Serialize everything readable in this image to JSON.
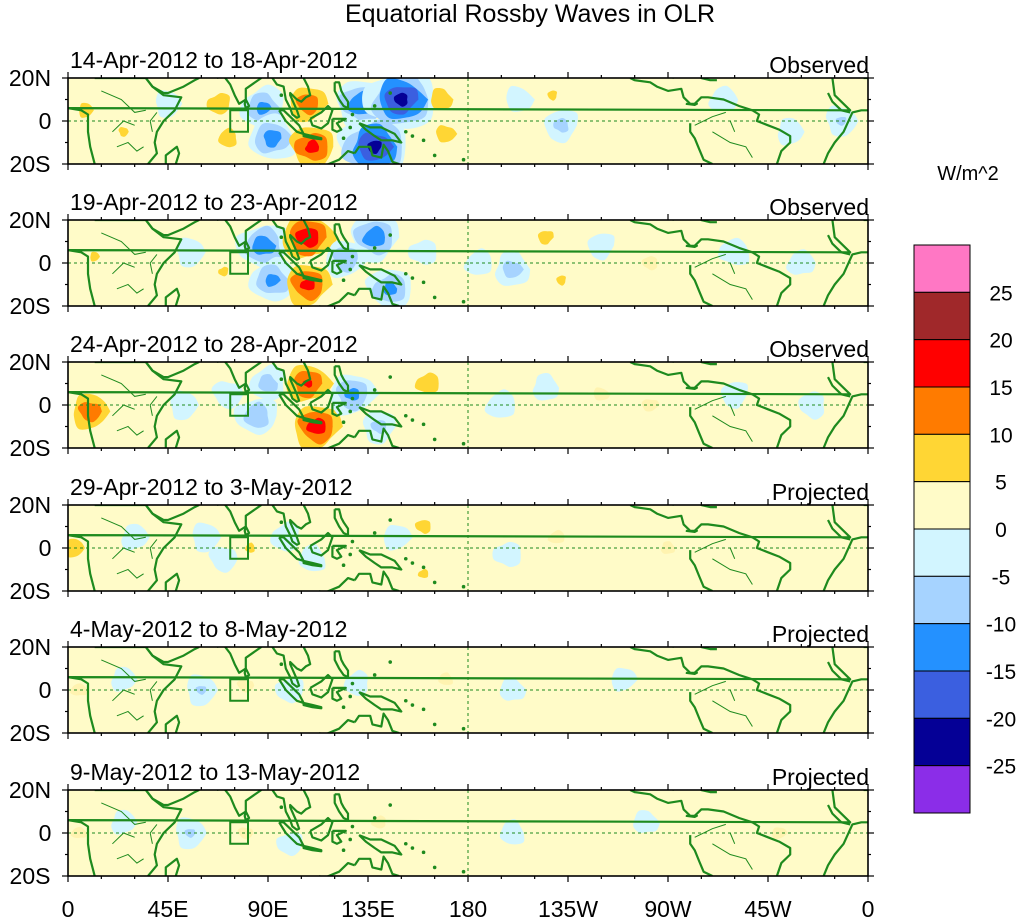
{
  "chart_data": {
    "type": "heatmap",
    "title": "Equatorial Rossby Waves in OLR",
    "units_label": "W/m^2",
    "x_ticks": [
      "0",
      "45E",
      "90E",
      "135E",
      "180",
      "135W",
      "90W",
      "45W",
      "0"
    ],
    "y_ticks": [
      "20N",
      "0",
      "20S"
    ],
    "colorbar": {
      "labels": [
        "25",
        "20",
        "15",
        "10",
        "5",
        "0",
        "-5",
        "-10",
        "-15",
        "-20",
        "-25"
      ],
      "colors": [
        "#ff77c4",
        "#a0282a",
        "#ff0000",
        "#ff7b00",
        "#ffd634",
        "#fffbc8",
        "#d2f5ff",
        "#a6d3ff",
        "#2491ff",
        "#3b5fe0",
        "#050096",
        "#8b2de8"
      ]
    },
    "panels": [
      {
        "date_range": "14-Apr-2012 to 18-Apr-2012",
        "status": "Observed"
      },
      {
        "date_range": "19-Apr-2012 to 23-Apr-2012",
        "status": "Observed"
      },
      {
        "date_range": "24-Apr-2012 to 28-Apr-2012",
        "status": "Observed"
      },
      {
        "date_range": "29-Apr-2012 to 3-May-2012",
        "status": "Projected"
      },
      {
        "date_range": "4-May-2012 to 8-May-2012",
        "status": "Projected"
      },
      {
        "date_range": "9-May-2012 to 13-May-2012",
        "status": "Projected"
      }
    ],
    "anomalies": [
      [
        {
          "lon": 8,
          "lat": 5,
          "v": 7
        },
        {
          "lon": 25,
          "lat": -5,
          "v": 6
        },
        {
          "lon": 45,
          "lat": 8,
          "v": -4
        },
        {
          "lon": 68,
          "lat": 8,
          "v": 9
        },
        {
          "lon": 72,
          "lat": -8,
          "v": 8
        },
        {
          "lon": 88,
          "lat": 6,
          "v": -12
        },
        {
          "lon": 92,
          "lat": -8,
          "v": -13
        },
        {
          "lon": 108,
          "lat": 8,
          "v": 14
        },
        {
          "lon": 110,
          "lat": -12,
          "v": 17
        },
        {
          "lon": 132,
          "lat": 8,
          "v": -15
        },
        {
          "lon": 138,
          "lat": -12,
          "v": -22
        },
        {
          "lon": 150,
          "lat": 10,
          "v": -22
        },
        {
          "lon": 168,
          "lat": 10,
          "v": 9
        },
        {
          "lon": 170,
          "lat": -6,
          "v": 8
        },
        {
          "lon": 203,
          "lat": 10,
          "v": -4
        },
        {
          "lon": 218,
          "lat": 12,
          "v": 6
        },
        {
          "lon": 222,
          "lat": -2,
          "v": -7
        },
        {
          "lon": 228,
          "lat": -10,
          "v": 5
        },
        {
          "lon": 275,
          "lat": 5,
          "v": 5
        },
        {
          "lon": 295,
          "lat": 10,
          "v": -4
        },
        {
          "lon": 325,
          "lat": -5,
          "v": -4
        },
        {
          "lon": 348,
          "lat": 0,
          "v": -6
        }
      ],
      [
        {
          "lon": 12,
          "lat": 3,
          "v": 6
        },
        {
          "lon": 30,
          "lat": -5,
          "v": 5
        },
        {
          "lon": 55,
          "lat": 5,
          "v": -5
        },
        {
          "lon": 70,
          "lat": -4,
          "v": 6
        },
        {
          "lon": 88,
          "lat": 8,
          "v": -14
        },
        {
          "lon": 92,
          "lat": -8,
          "v": -12
        },
        {
          "lon": 108,
          "lat": 12,
          "v": 19
        },
        {
          "lon": 108,
          "lat": -10,
          "v": 17
        },
        {
          "lon": 125,
          "lat": 2,
          "v": -10
        },
        {
          "lon": 138,
          "lat": 12,
          "v": -14
        },
        {
          "lon": 145,
          "lat": -12,
          "v": -12
        },
        {
          "lon": 160,
          "lat": 5,
          "v": -4
        },
        {
          "lon": 185,
          "lat": 0,
          "v": -4
        },
        {
          "lon": 200,
          "lat": -3,
          "v": -8
        },
        {
          "lon": 215,
          "lat": 12,
          "v": 7
        },
        {
          "lon": 222,
          "lat": -8,
          "v": 6
        },
        {
          "lon": 240,
          "lat": 8,
          "v": -4
        },
        {
          "lon": 262,
          "lat": 0,
          "v": 4
        },
        {
          "lon": 300,
          "lat": 5,
          "v": -5
        },
        {
          "lon": 330,
          "lat": 0,
          "v": -4
        }
      ],
      [
        {
          "lon": 10,
          "lat": -3,
          "v": 14
        },
        {
          "lon": 25,
          "lat": 8,
          "v": 5
        },
        {
          "lon": 52,
          "lat": 0,
          "v": -5
        },
        {
          "lon": 72,
          "lat": 5,
          "v": -5
        },
        {
          "lon": 85,
          "lat": -5,
          "v": -10
        },
        {
          "lon": 90,
          "lat": 10,
          "v": -8
        },
        {
          "lon": 108,
          "lat": 10,
          "v": 16
        },
        {
          "lon": 112,
          "lat": -10,
          "v": 18
        },
        {
          "lon": 128,
          "lat": 5,
          "v": -12
        },
        {
          "lon": 140,
          "lat": -10,
          "v": -7
        },
        {
          "lon": 162,
          "lat": 10,
          "v": 9
        },
        {
          "lon": 168,
          "lat": -5,
          "v": 5
        },
        {
          "lon": 195,
          "lat": 0,
          "v": -5
        },
        {
          "lon": 215,
          "lat": 8,
          "v": -4
        },
        {
          "lon": 240,
          "lat": 5,
          "v": 4
        },
        {
          "lon": 262,
          "lat": 0,
          "v": 4
        },
        {
          "lon": 300,
          "lat": 5,
          "v": -4
        },
        {
          "lon": 335,
          "lat": 0,
          "v": -4
        }
      ],
      [
        {
          "lon": 3,
          "lat": 0,
          "v": 8
        },
        {
          "lon": 30,
          "lat": 5,
          "v": -4
        },
        {
          "lon": 62,
          "lat": 5,
          "v": -5
        },
        {
          "lon": 70,
          "lat": -5,
          "v": -4
        },
        {
          "lon": 82,
          "lat": 0,
          "v": 6
        },
        {
          "lon": 98,
          "lat": 5,
          "v": -5
        },
        {
          "lon": 110,
          "lat": -5,
          "v": -4
        },
        {
          "lon": 130,
          "lat": -3,
          "v": 5
        },
        {
          "lon": 148,
          "lat": 5,
          "v": -4
        },
        {
          "lon": 160,
          "lat": 10,
          "v": 7
        },
        {
          "lon": 160,
          "lat": -12,
          "v": 6
        },
        {
          "lon": 198,
          "lat": -3,
          "v": -4
        },
        {
          "lon": 220,
          "lat": 5,
          "v": 4
        },
        {
          "lon": 270,
          "lat": 0,
          "v": 3
        },
        {
          "lon": 352,
          "lat": 0,
          "v": 5
        }
      ],
      [
        {
          "lon": 5,
          "lat": 0,
          "v": 4
        },
        {
          "lon": 25,
          "lat": 5,
          "v": -3
        },
        {
          "lon": 60,
          "lat": 0,
          "v": -6
        },
        {
          "lon": 80,
          "lat": 2,
          "v": 4
        },
        {
          "lon": 100,
          "lat": 0,
          "v": -4
        },
        {
          "lon": 130,
          "lat": 3,
          "v": -3
        },
        {
          "lon": 170,
          "lat": 5,
          "v": 3
        },
        {
          "lon": 200,
          "lat": 0,
          "v": -3
        },
        {
          "lon": 250,
          "lat": 5,
          "v": -3
        },
        {
          "lon": 355,
          "lat": 0,
          "v": 5
        }
      ],
      [
        {
          "lon": 5,
          "lat": 0,
          "v": 3
        },
        {
          "lon": 25,
          "lat": 5,
          "v": -3
        },
        {
          "lon": 55,
          "lat": 0,
          "v": -6
        },
        {
          "lon": 80,
          "lat": 0,
          "v": 3
        },
        {
          "lon": 100,
          "lat": -5,
          "v": -3
        },
        {
          "lon": 140,
          "lat": 5,
          "v": 3
        },
        {
          "lon": 200,
          "lat": 0,
          "v": -3
        },
        {
          "lon": 260,
          "lat": 5,
          "v": -3
        },
        {
          "lon": 320,
          "lat": 0,
          "v": 3
        }
      ]
    ]
  }
}
